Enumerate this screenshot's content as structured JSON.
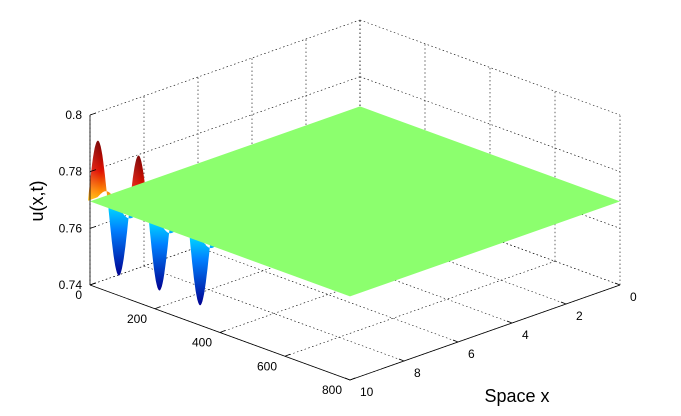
{
  "chart_data": {
    "type": "surface",
    "title": "",
    "zlabel": "u(x,t)",
    "xlabel": "Space x",
    "ylabel": "",
    "x_axis": {
      "label": "Space x",
      "lim": [
        0,
        10
      ],
      "ticks": [
        0,
        2,
        4,
        6,
        8,
        10
      ]
    },
    "t_axis": {
      "label": "",
      "lim": [
        0,
        800
      ],
      "ticks": [
        0,
        200,
        400,
        600,
        800
      ]
    },
    "z_axis": {
      "label": "u(x,t)",
      "lim": [
        0.74,
        0.8
      ],
      "ticks": [
        0.74,
        0.76,
        0.78,
        0.8
      ],
      "tick_labels": [
        "0.74",
        "0.76",
        "0.78",
        "0.8"
      ]
    },
    "surface": {
      "description_free": true,
      "flat_value": 0.7695,
      "flat_color": "#8cff6e",
      "oscillation_edge_x": 10,
      "oscillation_amplitude": 0.0225,
      "oscillation_peaks_t": [
        25,
        150,
        275,
        400
      ],
      "oscillation_troughs_t": [
        88,
        213,
        338
      ],
      "oscillation_period_t": 125
    },
    "grid": true,
    "box": true,
    "colormap": "jet"
  }
}
